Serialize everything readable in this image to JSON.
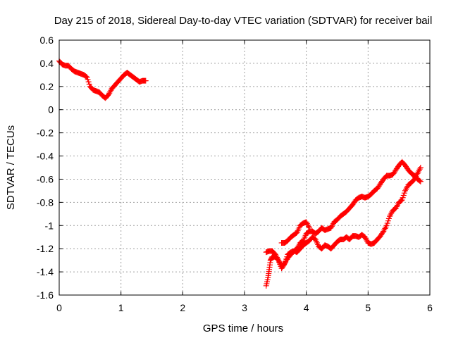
{
  "chart_data": {
    "type": "scatter",
    "title": "Day 215 of 2018, Sidereal Day-to-day VTEC variation (SDTVAR) for receiver bail",
    "xlabel": "GPS time / hours",
    "ylabel": "SDTVAR / TECUs",
    "xlim": [
      0,
      6
    ],
    "ylim": [
      -1.6,
      0.6
    ],
    "x_ticks": [
      "0",
      "1",
      "2",
      "3",
      "4",
      "5",
      "6"
    ],
    "y_ticks": [
      "0.6",
      "0.4",
      "0.2",
      "0",
      "-0.2",
      "-0.4",
      "-0.6",
      "-0.8",
      "-1",
      "-1.2",
      "-1.4",
      "-1.6"
    ],
    "grid": true,
    "marker": "plus",
    "colors": {
      "series": "#ff0000",
      "grid": "#a0a0a0",
      "frame": "#000000"
    },
    "series": [
      {
        "segments": [
          [
            [
              0.0,
              0.42
            ],
            [
              0.05,
              0.39
            ],
            [
              0.1,
              0.38
            ],
            [
              0.15,
              0.38
            ],
            [
              0.2,
              0.35
            ],
            [
              0.25,
              0.33
            ],
            [
              0.3,
              0.32
            ],
            [
              0.35,
              0.31
            ],
            [
              0.4,
              0.3
            ],
            [
              0.45,
              0.28
            ],
            [
              0.5,
              0.2
            ],
            [
              0.55,
              0.17
            ],
            [
              0.6,
              0.16
            ],
            [
              0.65,
              0.15
            ],
            [
              0.7,
              0.12
            ],
            [
              0.75,
              0.1
            ],
            [
              0.8,
              0.13
            ],
            [
              0.85,
              0.18
            ],
            [
              0.9,
              0.21
            ],
            [
              0.95,
              0.24
            ],
            [
              1.0,
              0.27
            ],
            [
              1.05,
              0.3
            ],
            [
              1.1,
              0.32
            ],
            [
              1.15,
              0.3
            ],
            [
              1.2,
              0.28
            ],
            [
              1.25,
              0.26
            ],
            [
              1.3,
              0.24
            ],
            [
              1.35,
              0.25
            ],
            [
              1.4,
              0.25
            ]
          ],
          [
            [
              3.35,
              -1.52
            ],
            [
              3.38,
              -1.45
            ],
            [
              3.4,
              -1.38
            ],
            [
              3.42,
              -1.3
            ],
            [
              3.45,
              -1.27
            ],
            [
              3.5,
              -1.27
            ],
            [
              3.55,
              -1.3
            ],
            [
              3.6,
              -1.35
            ],
            [
              3.65,
              -1.33
            ],
            [
              3.7,
              -1.25
            ],
            [
              3.75,
              -1.23
            ],
            [
              3.8,
              -1.22
            ],
            [
              3.85,
              -1.2
            ],
            [
              3.9,
              -1.15
            ],
            [
              3.95,
              -1.13
            ],
            [
              4.0,
              -1.07
            ],
            [
              4.05,
              -1.05
            ],
            [
              4.1,
              -1.05
            ],
            [
              4.15,
              -1.07
            ],
            [
              4.2,
              -1.05
            ],
            [
              4.25,
              -1.02
            ],
            [
              4.3,
              -1.04
            ],
            [
              4.35,
              -1.03
            ],
            [
              4.4,
              -1.02
            ],
            [
              4.45,
              -0.97
            ],
            [
              4.5,
              -0.95
            ],
            [
              4.55,
              -0.92
            ],
            [
              4.6,
              -0.9
            ],
            [
              4.65,
              -0.88
            ],
            [
              4.7,
              -0.85
            ],
            [
              4.75,
              -0.82
            ],
            [
              4.8,
              -0.78
            ],
            [
              4.85,
              -0.76
            ],
            [
              4.9,
              -0.75
            ],
            [
              4.95,
              -0.76
            ],
            [
              5.0,
              -0.75
            ],
            [
              5.05,
              -0.73
            ],
            [
              5.1,
              -0.7
            ],
            [
              5.15,
              -0.68
            ],
            [
              5.2,
              -0.64
            ],
            [
              5.25,
              -0.6
            ],
            [
              5.3,
              -0.57
            ],
            [
              5.35,
              -0.57
            ],
            [
              5.4,
              -0.56
            ],
            [
              5.45,
              -0.52
            ],
            [
              5.5,
              -0.48
            ],
            [
              5.55,
              -0.45
            ],
            [
              5.6,
              -0.48
            ],
            [
              5.65,
              -0.52
            ],
            [
              5.7,
              -0.55
            ],
            [
              5.75,
              -0.57
            ],
            [
              5.8,
              -0.6
            ],
            [
              5.85,
              -0.62
            ]
          ],
          [
            [
              3.35,
              -1.23
            ],
            [
              3.4,
              -1.22
            ],
            [
              3.45,
              -1.22
            ],
            [
              3.5,
              -1.25
            ],
            [
              3.55,
              -1.3
            ],
            [
              3.6,
              -1.37
            ],
            [
              3.65,
              -1.33
            ],
            [
              3.7,
              -1.28
            ],
            [
              3.75,
              -1.25
            ],
            [
              3.8,
              -1.22
            ],
            [
              3.85,
              -1.23
            ],
            [
              3.9,
              -1.2
            ],
            [
              3.95,
              -1.17
            ],
            [
              4.0,
              -1.15
            ],
            [
              4.05,
              -1.13
            ],
            [
              4.1,
              -1.1
            ],
            [
              4.15,
              -1.12
            ],
            [
              4.2,
              -1.18
            ],
            [
              4.25,
              -1.2
            ],
            [
              4.3,
              -1.17
            ],
            [
              4.35,
              -1.18
            ],
            [
              4.4,
              -1.2
            ],
            [
              4.45,
              -1.17
            ],
            [
              4.5,
              -1.14
            ],
            [
              4.55,
              -1.12
            ],
            [
              4.6,
              -1.12
            ],
            [
              4.65,
              -1.1
            ],
            [
              4.7,
              -1.12
            ],
            [
              4.75,
              -1.09
            ],
            [
              4.8,
              -1.09
            ],
            [
              4.85,
              -1.1
            ],
            [
              4.9,
              -1.08
            ],
            [
              4.95,
              -1.1
            ],
            [
              5.0,
              -1.15
            ],
            [
              5.05,
              -1.16
            ],
            [
              5.1,
              -1.15
            ],
            [
              5.15,
              -1.12
            ],
            [
              5.2,
              -1.09
            ],
            [
              5.25,
              -1.05
            ],
            [
              5.3,
              -1.0
            ],
            [
              5.35,
              -0.92
            ],
            [
              5.4,
              -0.87
            ],
            [
              5.45,
              -0.85
            ],
            [
              5.5,
              -0.8
            ],
            [
              5.55,
              -0.78
            ],
            [
              5.6,
              -0.7
            ],
            [
              5.65,
              -0.65
            ],
            [
              5.7,
              -0.63
            ],
            [
              5.75,
              -0.6
            ],
            [
              5.8,
              -0.55
            ],
            [
              5.85,
              -0.5
            ]
          ],
          [
            [
              3.6,
              -1.15
            ],
            [
              3.65,
              -1.15
            ],
            [
              3.7,
              -1.13
            ],
            [
              3.75,
              -1.1
            ],
            [
              3.8,
              -1.08
            ],
            [
              3.85,
              -1.06
            ],
            [
              3.9,
              -1.0
            ],
            [
              3.95,
              -0.98
            ],
            [
              4.0,
              -0.97
            ],
            [
              4.05,
              -1.02
            ]
          ]
        ]
      }
    ]
  }
}
